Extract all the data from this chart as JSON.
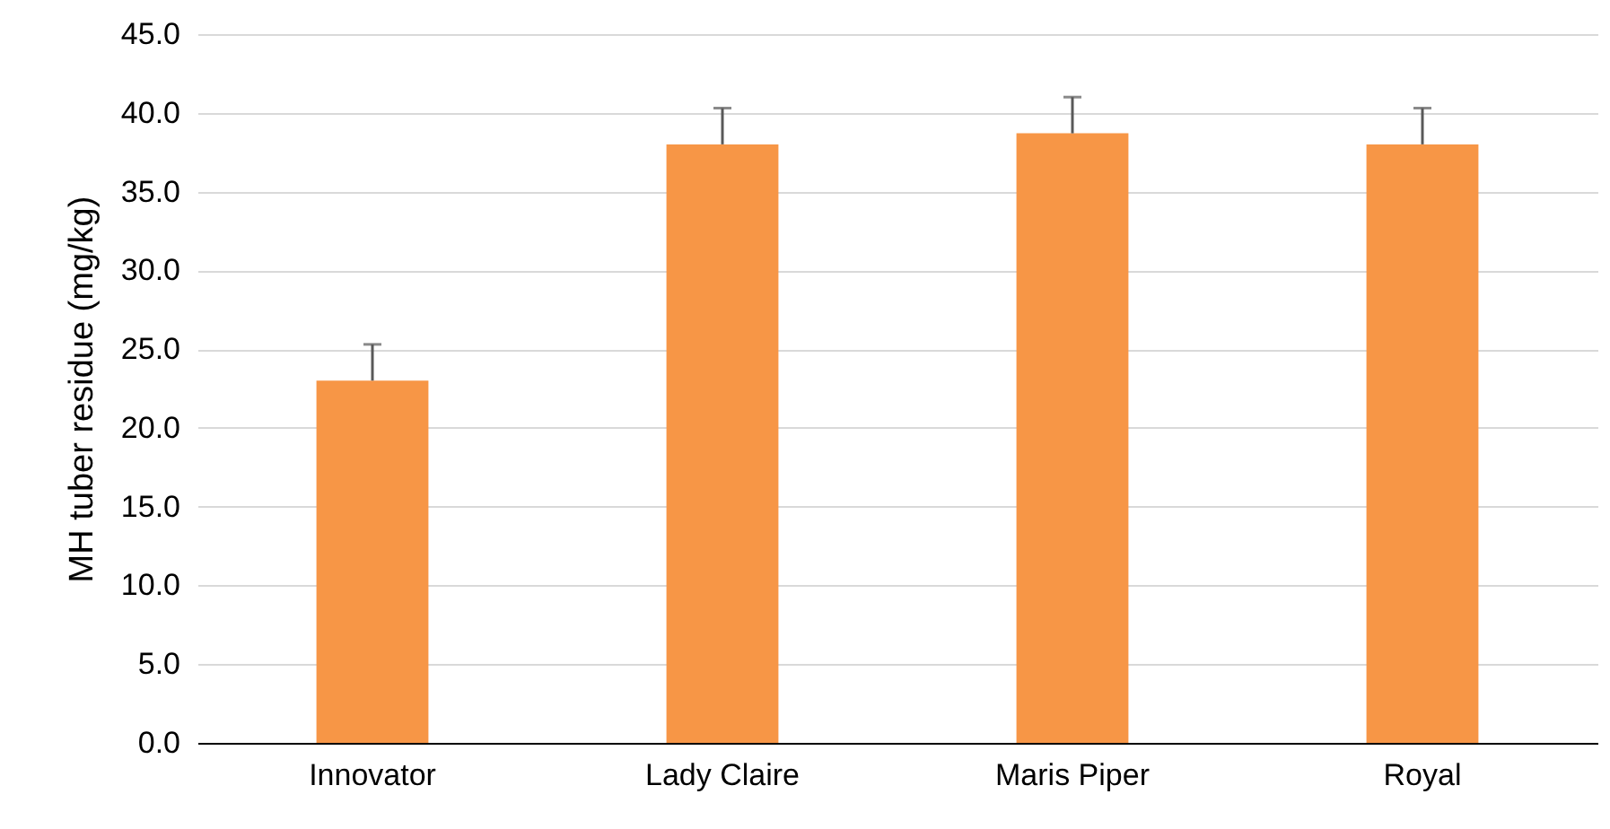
{
  "chart_data": {
    "type": "bar",
    "ylabel": "MH tuber residue (mg/kg)",
    "categories": [
      "Innovator",
      "Lady Claire",
      "Maris Piper",
      "Royal"
    ],
    "values": [
      23.0,
      38.0,
      38.7,
      38.0
    ],
    "errors": [
      [
        23.0,
        25.3
      ],
      [
        38.0,
        40.3
      ],
      [
        38.7,
        41.0
      ],
      [
        38.0,
        40.3
      ]
    ],
    "color": "#f79646",
    "ylim": [
      0,
      45
    ],
    "yticks": [
      {
        "value": 0,
        "label": "0.0"
      },
      {
        "value": 5,
        "label": "5.0"
      },
      {
        "value": 10,
        "label": "10.0"
      },
      {
        "value": 15,
        "label": "15.0"
      },
      {
        "value": 20,
        "label": "20.0"
      },
      {
        "value": 25,
        "label": "25.0"
      },
      {
        "value": 30,
        "label": "30.0"
      },
      {
        "value": 35,
        "label": "35.0"
      },
      {
        "value": 40,
        "label": "40.0"
      },
      {
        "value": 45,
        "label": "45.0"
      }
    ],
    "grid": "y"
  }
}
